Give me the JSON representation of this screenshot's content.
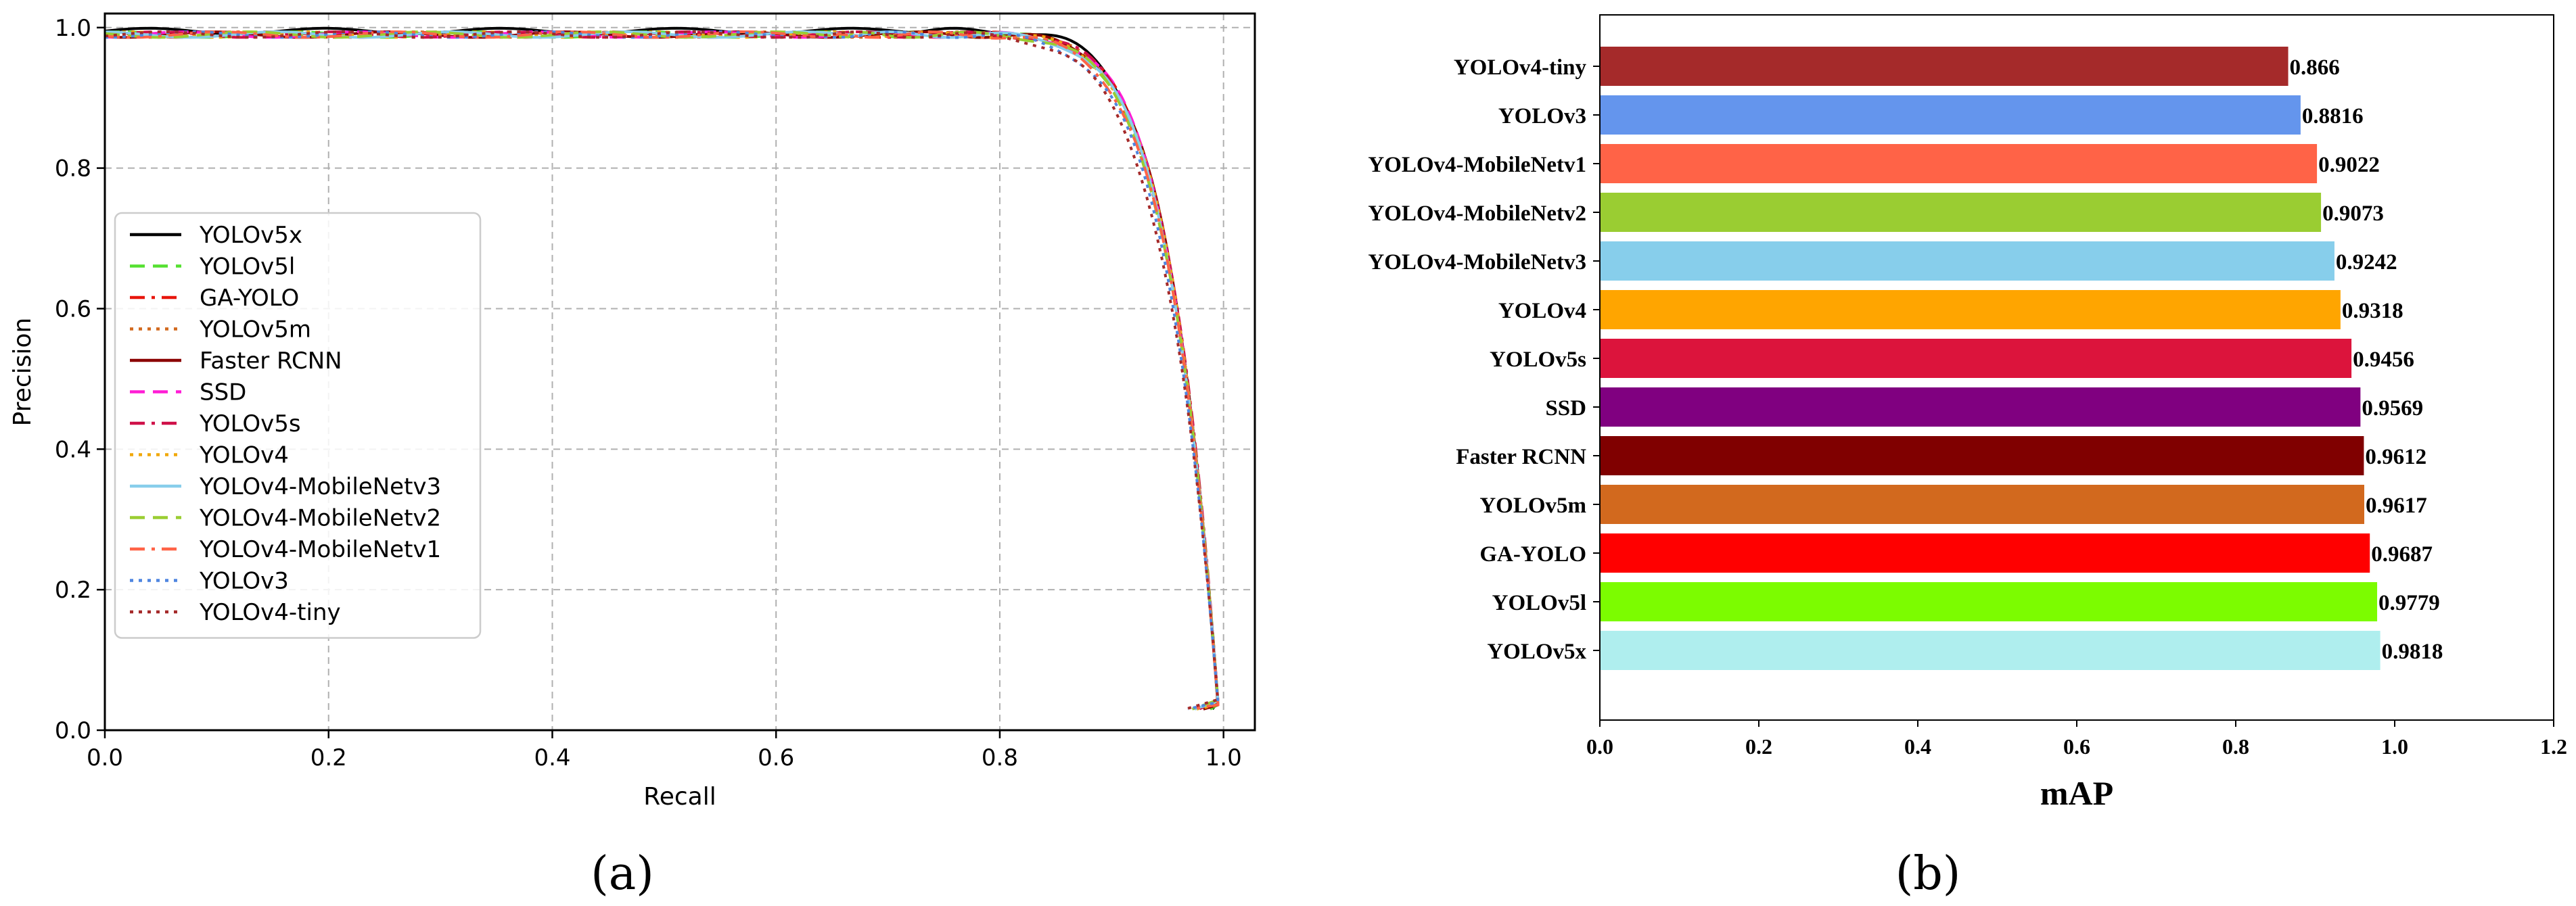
{
  "chart_data": [
    {
      "id": "a",
      "type": "line",
      "caption": "(a)",
      "xlabel": "Recall",
      "ylabel": "Precision",
      "xlim": [
        0.0,
        1.0
      ],
      "ylim": [
        0.0,
        1.0
      ],
      "xticks": [
        "0.0",
        "0.2",
        "0.4",
        "0.6",
        "0.8",
        "1.0"
      ],
      "yticks": [
        "0.0",
        "0.2",
        "0.4",
        "0.6",
        "0.8",
        "1.0"
      ],
      "grid": true,
      "legend_position": "center-left",
      "series": [
        {
          "name": "YOLOv5x",
          "color": "#000000",
          "dash": "solid",
          "knee": 0.975,
          "plateau": 0.995
        },
        {
          "name": "YOLOv5l",
          "color": "#55e030",
          "dash": "dashed",
          "knee": 0.965,
          "plateau": 0.99
        },
        {
          "name": "GA-YOLO",
          "color": "#e8160c",
          "dash": "dashdot",
          "knee": 0.965,
          "plateau": 0.99
        },
        {
          "name": "YOLOv5m",
          "color": "#d2691e",
          "dash": "dotted",
          "knee": 0.955,
          "plateau": 0.99
        },
        {
          "name": "Faster RCNN",
          "color": "#8b0000",
          "dash": "solid",
          "knee": 0.955,
          "plateau": 0.99
        },
        {
          "name": "SSD",
          "color": "#ff1dd5",
          "dash": "dashed",
          "knee": 0.95,
          "plateau": 0.99
        },
        {
          "name": "YOLOv5s",
          "color": "#cf1048",
          "dash": "dashdot",
          "knee": 0.945,
          "plateau": 0.99
        },
        {
          "name": "YOLOv4",
          "color": "#f0a80a",
          "dash": "dotted",
          "knee": 0.935,
          "plateau": 0.99
        },
        {
          "name": "YOLOv4-MobileNetv3",
          "color": "#87ceeb",
          "dash": "solid",
          "knee": 0.925,
          "plateau": 0.99
        },
        {
          "name": "YOLOv4-MobileNetv2",
          "color": "#9acd32",
          "dash": "dashed",
          "knee": 0.915,
          "plateau": 0.99
        },
        {
          "name": "YOLOv4-MobileNetv1",
          "color": "#ff6347",
          "dash": "dashdot",
          "knee": 0.905,
          "plateau": 0.99
        },
        {
          "name": "YOLOv3",
          "color": "#4f86e0",
          "dash": "dotted",
          "knee": 0.885,
          "plateau": 0.99
        },
        {
          "name": "YOLOv4-tiny",
          "color": "#a52a2a",
          "dash": "dotted",
          "knee": 0.865,
          "plateau": 0.99
        }
      ]
    },
    {
      "id": "b",
      "type": "bar",
      "orientation": "horizontal",
      "caption": "(b)",
      "xlabel": "mAP",
      "xlim": [
        0.0,
        1.2
      ],
      "xticks": [
        "0.0",
        "0.2",
        "0.4",
        "0.6",
        "0.8",
        "1.0",
        "1.2"
      ],
      "categories": [
        "YOLOv4-tiny",
        "YOLOv3",
        "YOLOv4-MobileNetv1",
        "YOLOv4-MobileNetv2",
        "YOLOv4-MobileNetv3",
        "YOLOv4",
        "YOLOv5s",
        "SSD",
        "Faster RCNN",
        "YOLOv5m",
        "GA-YOLO",
        "YOLOv5l",
        "YOLOv5x"
      ],
      "values": [
        0.866,
        0.8816,
        0.9022,
        0.9073,
        0.9242,
        0.9318,
        0.9456,
        0.9569,
        0.9612,
        0.9617,
        0.9687,
        0.9779,
        0.9818
      ],
      "value_labels": [
        "0.866",
        "0.8816",
        "0.9022",
        "0.9073",
        "0.9242",
        "0.9318",
        "0.9456",
        "0.9569",
        "0.9612",
        "0.9617",
        "0.9687",
        "0.9779",
        "0.9818"
      ],
      "colors": [
        "#a52a2a",
        "#6495ed",
        "#ff6347",
        "#9acd32",
        "#87ceeb",
        "#ffa500",
        "#dc143c",
        "#800080",
        "#800000",
        "#d2691e",
        "#ff0000",
        "#7cfc00",
        "#afeeee"
      ]
    }
  ]
}
